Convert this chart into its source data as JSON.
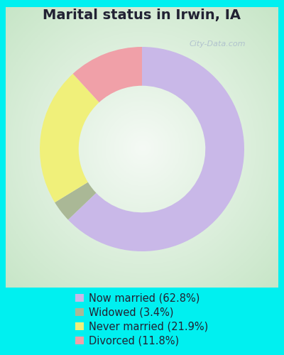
{
  "title": "Marital status in Irwin, IA",
  "slices": [
    62.8,
    3.4,
    21.9,
    11.8
  ],
  "labels": [
    "Now married (62.8%)",
    "Widowed (3.4%)",
    "Never married (21.9%)",
    "Divorced (11.8%)"
  ],
  "colors": [
    "#c9b8e8",
    "#aab896",
    "#f0f07a",
    "#f0a0a8"
  ],
  "start_angle": 90,
  "bg_cyan": "#00f0f0",
  "chart_bg_center": "#f0f8f4",
  "chart_bg_edge": "#c8e8d0",
  "title_fontsize": 14,
  "legend_fontsize": 10.5,
  "watermark": "City-Data.com",
  "donut_width": 0.38
}
